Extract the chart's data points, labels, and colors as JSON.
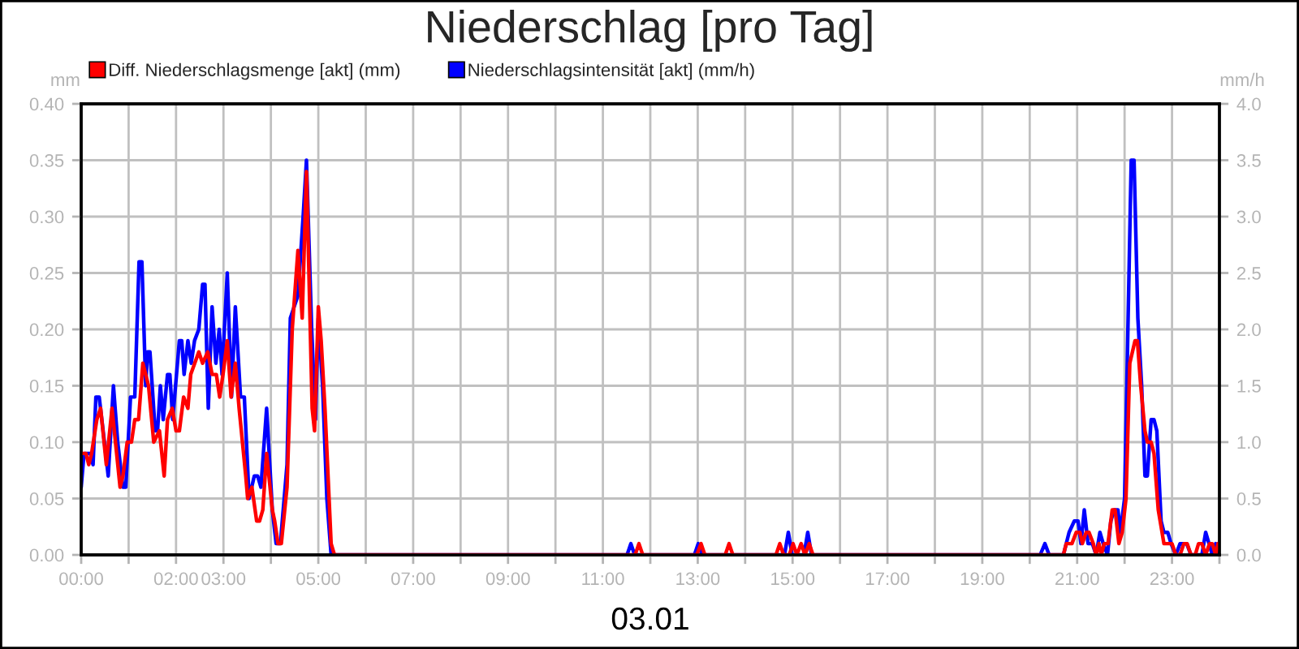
{
  "chart_data": {
    "type": "line",
    "title": "Niederschlag [pro Tag]",
    "xlabel": "03.01",
    "ylabel": "mm",
    "y2label": "mm/h",
    "xlim": [
      0,
      24
    ],
    "xticks": [
      {
        "value": 0,
        "label": "00:00"
      },
      {
        "value": 1,
        "label": null
      },
      {
        "value": 2,
        "label": "02:00"
      },
      {
        "value": 3,
        "label": "03:00"
      },
      {
        "value": 4,
        "label": null
      },
      {
        "value": 5,
        "label": "05:00"
      },
      {
        "value": 6,
        "label": null
      },
      {
        "value": 7,
        "label": "07:00"
      },
      {
        "value": 8,
        "label": null
      },
      {
        "value": 9,
        "label": "09:00"
      },
      {
        "value": 10,
        "label": null
      },
      {
        "value": 11,
        "label": "11:00"
      },
      {
        "value": 12,
        "label": null
      },
      {
        "value": 13,
        "label": "13:00"
      },
      {
        "value": 14,
        "label": null
      },
      {
        "value": 15,
        "label": "15:00"
      },
      {
        "value": 16,
        "label": null
      },
      {
        "value": 17,
        "label": "17:00"
      },
      {
        "value": 18,
        "label": null
      },
      {
        "value": 19,
        "label": "19:00"
      },
      {
        "value": 20,
        "label": null
      },
      {
        "value": 21,
        "label": "21:00"
      },
      {
        "value": 22,
        "label": null
      },
      {
        "value": 23,
        "label": "23:00"
      },
      {
        "value": 24,
        "label": null
      }
    ],
    "ylim": [
      0,
      0.4
    ],
    "yticks": [
      {
        "value": 0,
        "label": "0.00"
      },
      {
        "value": 0.05,
        "label": "0.05"
      },
      {
        "value": 0.1,
        "label": "0.10"
      },
      {
        "value": 0.15,
        "label": "0.15"
      },
      {
        "value": 0.2,
        "label": "0.20"
      },
      {
        "value": 0.25,
        "label": "0.25"
      },
      {
        "value": 0.3,
        "label": "0.30"
      },
      {
        "value": 0.35,
        "label": "0.35"
      },
      {
        "value": 0.4,
        "label": "0.40"
      }
    ],
    "y2lim": [
      0,
      4
    ],
    "y2ticks": [
      {
        "value": 0,
        "label": "0.0"
      },
      {
        "value": 0.5,
        "label": "0.5"
      },
      {
        "value": 1,
        "label": "1.0"
      },
      {
        "value": 1.5,
        "label": "1.5"
      },
      {
        "value": 2,
        "label": "2.0"
      },
      {
        "value": 2.5,
        "label": "2.5"
      },
      {
        "value": 3,
        "label": "3.0"
      },
      {
        "value": 3.5,
        "label": "3.5"
      },
      {
        "value": 4,
        "label": "4.0"
      }
    ],
    "grid": true,
    "legend": "top left",
    "series": [
      {
        "name": "Diff. Niederschlagsmenge [akt] (mm)",
        "color": "#ff0000",
        "x": [
          0.02,
          0.1,
          0.16,
          0.22,
          0.33,
          0.41,
          0.53,
          0.65,
          0.82,
          0.88,
          0.97,
          1.06,
          1.13,
          1.21,
          1.3,
          1.42,
          1.53,
          1.65,
          1.75,
          1.82,
          1.92,
          2.0,
          2.07,
          2.16,
          2.25,
          2.31,
          2.48,
          2.56,
          2.67,
          2.76,
          2.85,
          2.92,
          2.99,
          3.08,
          3.16,
          3.25,
          3.33,
          3.47,
          3.51,
          3.6,
          3.7,
          3.76,
          3.83,
          3.91,
          4.03,
          4.08,
          4.15,
          4.22,
          4.34,
          4.45,
          4.57,
          4.66,
          4.75,
          4.87,
          4.92,
          5.0,
          5.06,
          5.14,
          5.27,
          5.34,
          11.68,
          11.76,
          11.84,
          12.98,
          13.07,
          13.15,
          13.58,
          13.66,
          13.74,
          14.65,
          14.73,
          14.81,
          14.93,
          15.01,
          15.09,
          15.18,
          15.26,
          15.35,
          15.43,
          20.71,
          20.77,
          20.89,
          20.98,
          21.06,
          21.11,
          21.19,
          21.25,
          21.34,
          21.4,
          21.46,
          21.51,
          21.57,
          21.65,
          21.74,
          21.8,
          21.88,
          21.95,
          22.03,
          22.11,
          22.22,
          22.27,
          22.34,
          22.43,
          22.48,
          22.56,
          22.62,
          22.71,
          22.83,
          23.0,
          23.08,
          23.17,
          23.25,
          23.32,
          23.4,
          23.49,
          23.56,
          23.63,
          23.71,
          23.79,
          23.85,
          23.92,
          23.97
        ],
        "values": [
          0.09,
          0.09,
          0.08,
          0.09,
          0.12,
          0.13,
          0.08,
          0.13,
          0.06,
          0.07,
          0.1,
          0.1,
          0.12,
          0.12,
          0.17,
          0.15,
          0.1,
          0.11,
          0.07,
          0.12,
          0.13,
          0.11,
          0.11,
          0.14,
          0.13,
          0.16,
          0.18,
          0.17,
          0.18,
          0.16,
          0.16,
          0.14,
          0.16,
          0.19,
          0.14,
          0.17,
          0.13,
          0.07,
          0.05,
          0.06,
          0.03,
          0.03,
          0.04,
          0.09,
          0.04,
          0.03,
          0.01,
          0.01,
          0.06,
          0.2,
          0.27,
          0.21,
          0.34,
          0.13,
          0.11,
          0.22,
          0.19,
          0.13,
          0.01,
          0.0,
          0.0,
          0.01,
          0.0,
          0.0,
          0.01,
          0.0,
          0.0,
          0.01,
          0.0,
          0.0,
          0.01,
          0.0,
          0.0,
          0.01,
          0.0,
          0.01,
          0.0,
          0.01,
          0.0,
          0.0,
          0.01,
          0.01,
          0.02,
          0.02,
          0.01,
          0.02,
          0.02,
          0.01,
          0.0,
          0.01,
          0.0,
          0.01,
          0.01,
          0.04,
          0.04,
          0.01,
          0.02,
          0.05,
          0.17,
          0.19,
          0.19,
          0.15,
          0.11,
          0.1,
          0.1,
          0.09,
          0.04,
          0.01,
          0.01,
          0.0,
          0.0,
          0.01,
          0.01,
          0.0,
          0.0,
          0.01,
          0.01,
          0.0,
          0.01,
          0.01,
          0.0,
          0.01
        ]
      },
      {
        "name": "Niederschlagsintensität [akt] (mm/h)",
        "color": "#0000ff",
        "axis": "y2",
        "x": [
          0.0,
          0.06,
          0.19,
          0.25,
          0.31,
          0.38,
          0.49,
          0.57,
          0.68,
          0.77,
          0.88,
          0.94,
          1.04,
          1.13,
          1.22,
          1.28,
          1.36,
          1.4,
          1.45,
          1.56,
          1.61,
          1.67,
          1.73,
          1.82,
          1.87,
          1.93,
          2.07,
          2.12,
          2.17,
          2.25,
          2.32,
          2.39,
          2.48,
          2.56,
          2.61,
          2.68,
          2.76,
          2.84,
          2.91,
          2.97,
          3.08,
          3.17,
          3.25,
          3.36,
          3.44,
          3.54,
          3.65,
          3.72,
          3.79,
          3.91,
          4.03,
          4.11,
          4.2,
          4.34,
          4.41,
          4.57,
          4.68,
          4.75,
          4.86,
          4.94,
          5.0,
          5.09,
          5.18,
          5.27,
          11.51,
          11.59,
          11.67,
          12.93,
          13.01,
          13.09,
          14.83,
          14.91,
          14.99,
          15.24,
          15.32,
          15.4,
          20.22,
          20.32,
          20.41,
          20.71,
          20.83,
          20.94,
          21.02,
          21.08,
          21.15,
          21.23,
          21.32,
          21.4,
          21.48,
          21.55,
          21.64,
          21.71,
          21.78,
          21.86,
          21.91,
          22.0,
          22.14,
          22.2,
          22.28,
          22.36,
          22.43,
          22.48,
          22.56,
          22.62,
          22.68,
          22.77,
          22.83,
          22.91,
          22.98,
          23.08,
          23.17,
          23.31,
          23.4,
          23.63,
          23.71,
          23.78,
          23.85,
          23.92,
          23.97
        ],
        "values": [
          0.6,
          0.9,
          0.9,
          0.8,
          1.4,
          1.4,
          1.0,
          0.7,
          1.5,
          1.0,
          0.6,
          0.6,
          1.4,
          1.4,
          2.6,
          2.6,
          1.5,
          1.8,
          1.8,
          1.1,
          1.1,
          1.5,
          1.2,
          1.6,
          1.6,
          1.2,
          1.9,
          1.9,
          1.6,
          1.9,
          1.7,
          1.9,
          2.0,
          2.4,
          2.4,
          1.3,
          2.2,
          1.7,
          2.0,
          1.6,
          2.5,
          1.4,
          2.2,
          1.4,
          1.4,
          0.5,
          0.7,
          0.7,
          0.6,
          1.3,
          0.4,
          0.1,
          0.1,
          0.8,
          2.1,
          2.3,
          3.0,
          3.5,
          2.0,
          1.2,
          2.1,
          1.5,
          0.5,
          0.0,
          0.0,
          0.1,
          0.0,
          0.0,
          0.1,
          0.0,
          0.0,
          0.2,
          0.0,
          0.0,
          0.2,
          0.0,
          0.0,
          0.1,
          0.0,
          0.0,
          0.2,
          0.3,
          0.3,
          0.1,
          0.4,
          0.1,
          0.1,
          0.0,
          0.2,
          0.1,
          0.0,
          0.3,
          0.4,
          0.4,
          0.2,
          0.5,
          3.5,
          3.5,
          2.1,
          1.5,
          0.7,
          0.7,
          1.2,
          1.2,
          1.1,
          0.3,
          0.2,
          0.2,
          0.1,
          0.0,
          0.1,
          0.1,
          0.0,
          0.0,
          0.2,
          0.1,
          0.0,
          0.1,
          0.0
        ]
      }
    ]
  }
}
